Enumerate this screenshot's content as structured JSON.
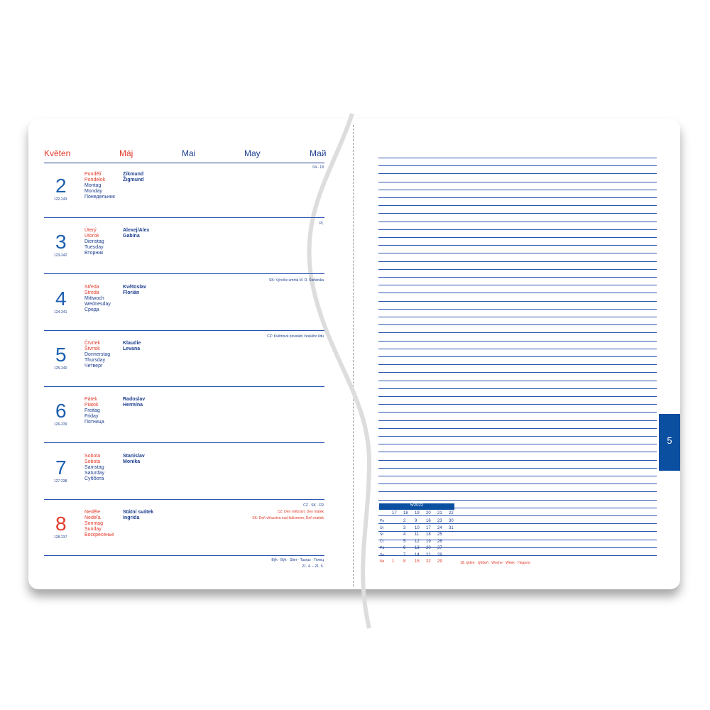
{
  "header": {
    "months": [
      "Květen",
      "Máj",
      "Mai",
      "May",
      "Май"
    ]
  },
  "days": [
    {
      "number": "2",
      "yday": "122-243",
      "names": [
        "Pondělí",
        "Pondelok",
        "Montag",
        "Monday",
        "Понедельник"
      ],
      "namedays": [
        "Zikmund",
        "Žigmund"
      ],
      "notes": [
        "04 - 18"
      ]
    },
    {
      "number": "3",
      "yday": "123-242",
      "names": [
        "Úterý",
        "Utorok",
        "Dienstag",
        "Tuesday",
        "Вторник"
      ],
      "namedays": [
        "Alexej/Alex",
        "Gabina"
      ],
      "notes": [
        "PL"
      ]
    },
    {
      "number": "4",
      "yday": "124-241",
      "names": [
        "Středa",
        "Streda",
        "Mittwoch",
        "Wednesday",
        "Среда"
      ],
      "namedays": [
        "Květoslav",
        "Florián"
      ],
      "notes": [
        "SK: Výročie úmrtia M. R. Štefánika"
      ]
    },
    {
      "number": "5",
      "yday": "125-240",
      "names": [
        "Čtvrtek",
        "Štvrtok",
        "Donnerstag",
        "Thursday",
        "Четверг"
      ],
      "namedays": [
        "Klaudie",
        "Levana"
      ],
      "notes": [
        "CZ: Květnové povstání českého lidu"
      ]
    },
    {
      "number": "6",
      "yday": "126-239",
      "names": [
        "Pátek",
        "Piatok",
        "Freitag",
        "Friday",
        "Пятница"
      ],
      "namedays": [
        "Radoslav",
        "Hermína"
      ],
      "notes": []
    },
    {
      "number": "7",
      "yday": "127-238",
      "names": [
        "Sobota",
        "Sobota",
        "Samstag",
        "Saturday",
        "Суббота"
      ],
      "namedays": [
        "Stanislav",
        "Monika"
      ],
      "notes": []
    },
    {
      "number": "8",
      "yday": "128-237",
      "names": [
        "Neděle",
        "Nedeľa",
        "Sonntag",
        "Sunday",
        "Воскресенье"
      ],
      "namedays": [
        "Státní svátek",
        "Ingrida"
      ],
      "notes": [
        "CZ · SK · FR",
        "CZ: Den vítězství, Den matek",
        "SK: Deň víťazstva nad fašizmom, Deň matiek"
      ]
    }
  ],
  "zodiac": {
    "name": "Býk · Býk · Stier · Taurus · Телец",
    "dates": "21. 4. – 21. 5."
  },
  "mini_calendar": {
    "title": "5/2022",
    "weeks": [
      "17",
      "18",
      "19",
      "20",
      "21",
      "22"
    ],
    "rows": [
      {
        "label": "Po",
        "days": [
          "",
          "2",
          "9",
          "16",
          "23",
          "30"
        ]
      },
      {
        "label": "Út",
        "days": [
          "",
          "3",
          "10",
          "17",
          "24",
          "31"
        ]
      },
      {
        "label": "St",
        "days": [
          "",
          "4",
          "11",
          "18",
          "25",
          ""
        ]
      },
      {
        "label": "Čt",
        "days": [
          "",
          "5",
          "12",
          "19",
          "26",
          ""
        ]
      },
      {
        "label": "Pá",
        "days": [
          "",
          "6",
          "13",
          "20",
          "27",
          ""
        ]
      },
      {
        "label": "So",
        "days": [
          "",
          "7",
          "14",
          "21",
          "28",
          ""
        ]
      },
      {
        "label": "Ne",
        "days": [
          "1",
          "8",
          "15",
          "22",
          "29",
          ""
        ]
      }
    ]
  },
  "week_label": "18. týden · týždeň · Woche · Week · Неделя",
  "tab": "5"
}
